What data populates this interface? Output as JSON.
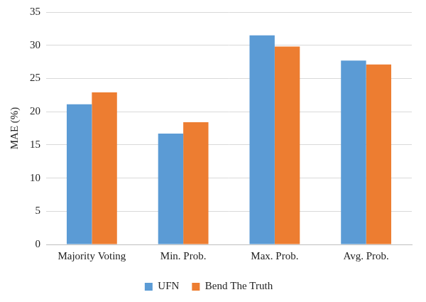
{
  "chart_data": {
    "type": "bar",
    "y_label": "MAE (%)",
    "categories": [
      "Majority Voting",
      "Min. Prob.",
      "Max. Prob.",
      "Avg. Prob."
    ],
    "series": [
      {
        "name": "UFN",
        "color": "#5b9bd5",
        "values": [
          21.1,
          16.7,
          31.5,
          27.7
        ]
      },
      {
        "name": "Bend The Truth",
        "color": "#ed7d31",
        "values": [
          22.9,
          18.4,
          29.8,
          27.1
        ]
      }
    ],
    "ylim": [
      0,
      35
    ],
    "yticks": [
      0,
      5,
      10,
      15,
      20,
      25,
      30,
      35
    ],
    "grid": true,
    "legend": "bottom"
  }
}
